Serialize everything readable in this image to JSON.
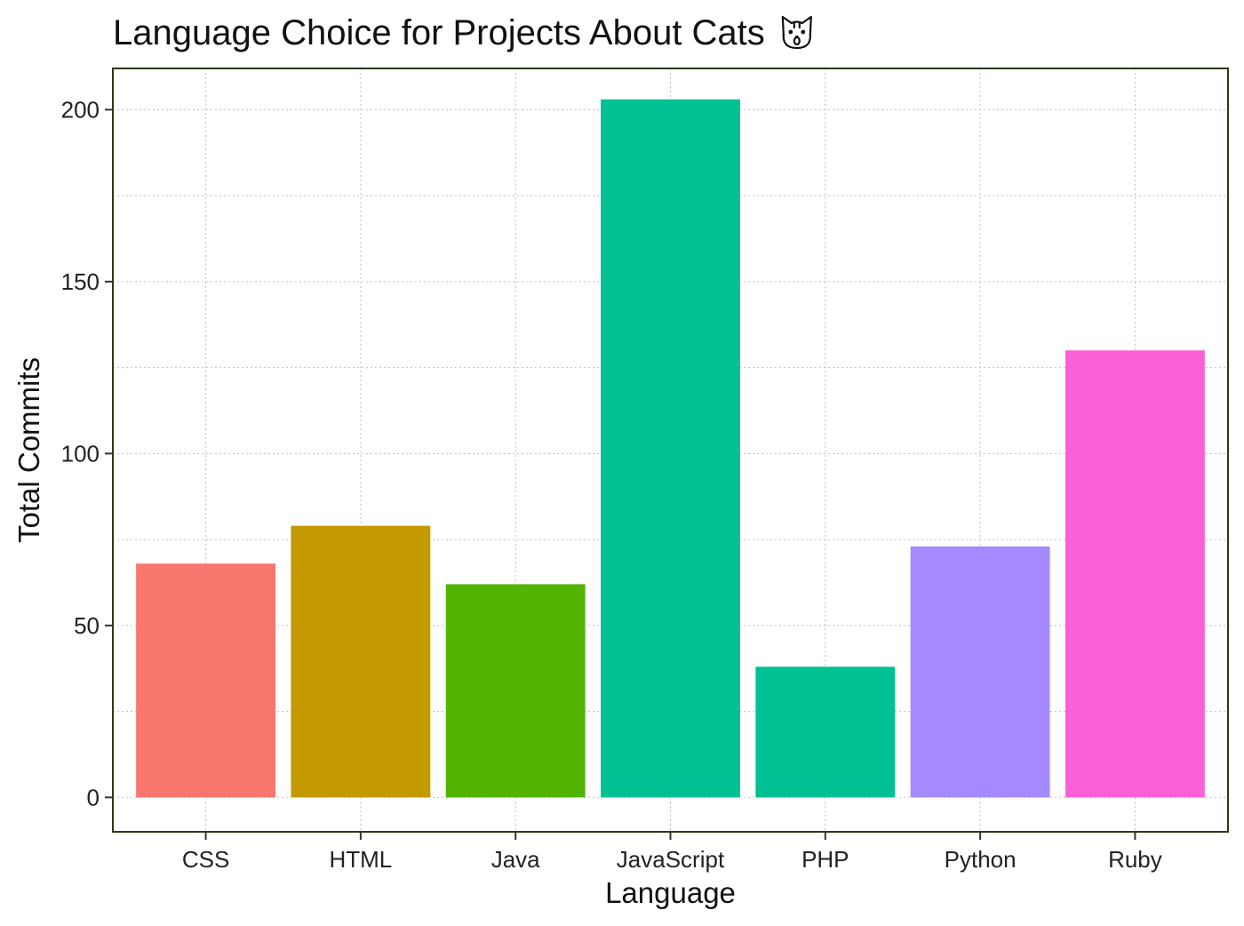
{
  "chart_data": {
    "type": "bar",
    "title": "Language Choice for Projects About Cats",
    "title_icon": "cat-face-icon",
    "xlabel": "Language",
    "ylabel": "Total Commits",
    "categories": [
      "CSS",
      "HTML",
      "Java",
      "JavaScript",
      "PHP",
      "Python",
      "Ruby"
    ],
    "values": [
      68,
      79,
      62,
      203,
      38,
      73,
      130
    ],
    "colors": [
      "#F8766D",
      "#C49A00",
      "#53B400",
      "#00C094",
      "#00C094",
      "#A58AFF",
      "#FB61D7"
    ],
    "ylim": [
      -10,
      212
    ],
    "yticks": [
      0,
      50,
      100,
      150,
      200
    ],
    "grid": true,
    "legend": "none",
    "panel_border_color": "#2a3a10"
  }
}
